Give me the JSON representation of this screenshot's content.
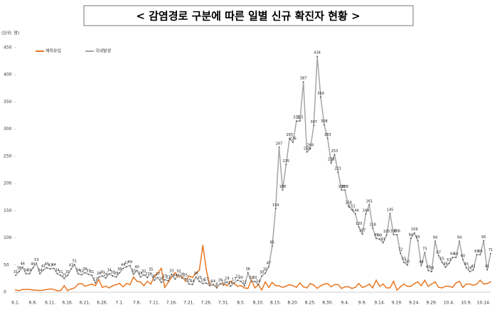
{
  "chart_data": {
    "type": "line",
    "title": "< 감염경로 구분에 따른 일별 신규 확진자 현황 >",
    "unit_label": "(단위: 명)",
    "categories": [
      "6.1.",
      null,
      null,
      null,
      null,
      "6.6.",
      null,
      null,
      null,
      null,
      "6.11.",
      null,
      null,
      null,
      null,
      "6.16.",
      null,
      null,
      null,
      null,
      "6.21.",
      null,
      null,
      null,
      null,
      "6.26.",
      null,
      null,
      null,
      null,
      "7.1.",
      null,
      null,
      null,
      null,
      "7.6.",
      null,
      null,
      null,
      null,
      "7.11.",
      null,
      null,
      null,
      null,
      "7.16.",
      null,
      null,
      null,
      null,
      "7.21.",
      null,
      null,
      null,
      null,
      "7.26.",
      null,
      null,
      null,
      null,
      "7.31.",
      null,
      null,
      null,
      null,
      "8.5.",
      null,
      null,
      null,
      null,
      "8.10.",
      null,
      null,
      null,
      null,
      "8.15.",
      null,
      null,
      null,
      null,
      "8.20.",
      null,
      null,
      null,
      null,
      "8.25.",
      null,
      null,
      null,
      null,
      "8.30.",
      null,
      null,
      null,
      null,
      "9.4.",
      null,
      null,
      null,
      null,
      "9.9.",
      null,
      null,
      null,
      null,
      "9.14.",
      null,
      null,
      null,
      null,
      "9.19.",
      null,
      null,
      null,
      null,
      "9.24.",
      null,
      null,
      null,
      null,
      "9.29.",
      null,
      null,
      null,
      null,
      "10.4.",
      null,
      null,
      null,
      null,
      "10.9.",
      null,
      null,
      null,
      null,
      "10.14.",
      null,
      null
    ],
    "series": [
      {
        "name": "해외유입",
        "color": "#e87722",
        "labels": false,
        "values": [
          4,
          3,
          5,
          5,
          5,
          4,
          4,
          3,
          4,
          5,
          6,
          5,
          3,
          3,
          12,
          3,
          6,
          8,
          15,
          16,
          11,
          13,
          15,
          12,
          23,
          9,
          11,
          8,
          12,
          14,
          16,
          10,
          16,
          14,
          28,
          20,
          19,
          12,
          20,
          15,
          30,
          35,
          44,
          9,
          18,
          28,
          36,
          28,
          29,
          20,
          30,
          27,
          35,
          41,
          86,
          41,
          13,
          14,
          10,
          15,
          16,
          12,
          20,
          16,
          11,
          12,
          8,
          7,
          23,
          8,
          14,
          4,
          19,
          9,
          18,
          12,
          12,
          9,
          11,
          14,
          12,
          9,
          17,
          10,
          8,
          16,
          13,
          7,
          12,
          15,
          16,
          10,
          14,
          14,
          7,
          10,
          10,
          7,
          9,
          16,
          9,
          11,
          15,
          8,
          22,
          11,
          15,
          8,
          8,
          20,
          4,
          10,
          15,
          11,
          11,
          16,
          19,
          12,
          22,
          11,
          15,
          19,
          9,
          8,
          11,
          11,
          9,
          17,
          20,
          9,
          15,
          15,
          13,
          15,
          22,
          15,
          16,
          19
        ]
      },
      {
        "name": "국내발생",
        "color": "#a6a6a6",
        "labels": true,
        "values": [
          31,
          38,
          46,
          34,
          34,
          45,
          53,
          34,
          41,
          45,
          43,
          44,
          34,
          31,
          25,
          31,
          43,
          51,
          34,
          32,
          36,
          33,
          31,
          17,
          28,
          30,
          26,
          34,
          30,
          28,
          36,
          44,
          47,
          49,
          33,
          40,
          28,
          32,
          27,
          35,
          22,
          27,
          18,
          23,
          21,
          33,
          24,
          32,
          26,
          25,
          15,
          14,
          28,
          20,
          16,
          17,
          12,
          14,
          8,
          16,
          13,
          19,
          11,
          17,
          22,
          20,
          12,
          36,
          20,
          20,
          14,
          30,
          35,
          47,
          85,
          154,
          267,
          188,
          235,
          283,
          276,
          315,
          315,
          387,
          258,
          264,
          307,
          434,
          359,
          308,
          283,
          238,
          253,
          221,
          188,
          188,
          158,
          152,
          144,
          120,
          107,
          144,
          161,
          118,
          99,
          98,
          91,
          105,
          145,
          106,
          106,
          72,
          55,
          50,
          99,
          109,
          95,
          49,
          73,
          40,
          38,
          94,
          67,
          55,
          46,
          53,
          64,
          64,
          94,
          60,
          45,
          38,
          41,
          69,
          69,
          95,
          41,
          71
        ]
      }
    ],
    "ylim": [
      0,
      450
    ],
    "yticks": [
      0,
      50,
      100,
      150,
      200,
      250,
      300,
      350,
      400,
      450
    ],
    "grid": false,
    "legend": "top-left"
  }
}
